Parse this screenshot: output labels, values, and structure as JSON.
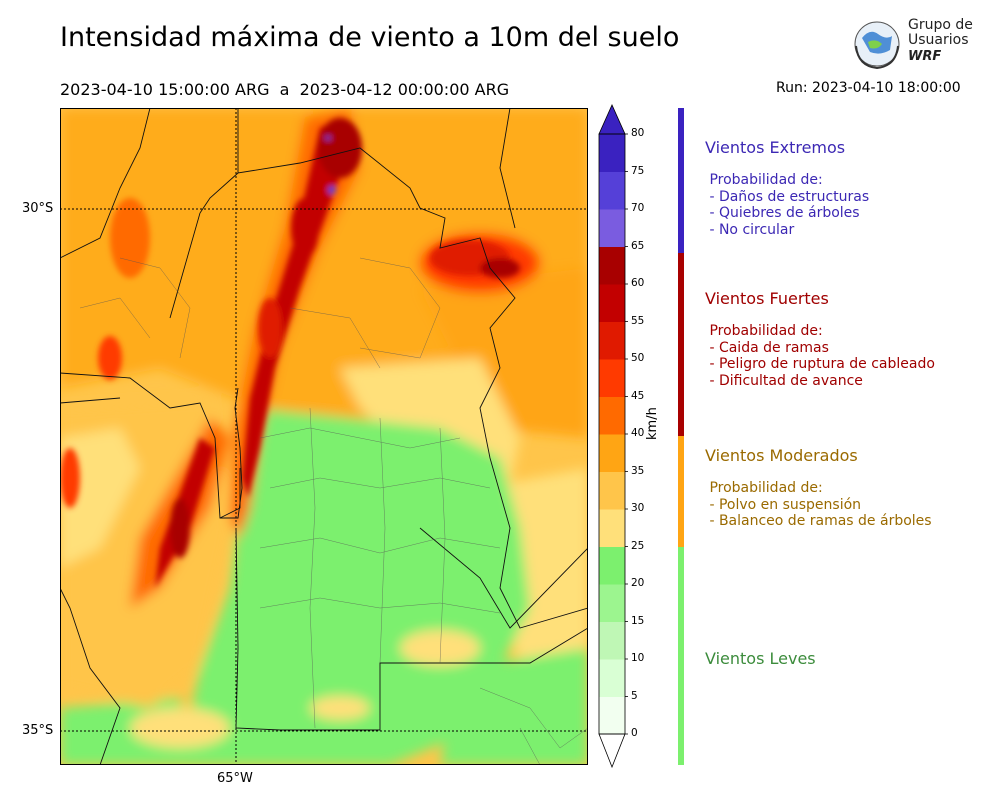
{
  "header": {
    "title": "Intensidad máxima de viento a 10m del suelo",
    "period": "2023-04-10 15:00:00 ARG  a  2023-04-12 00:00:00 ARG",
    "run": "Run: 2023-04-10 18:00:00"
  },
  "logo": {
    "line1": "Grupo de",
    "line2": "Usuarios",
    "line3": "WRF"
  },
  "map": {
    "lat_labels": [
      "30°S",
      "35°S"
    ],
    "lon_labels": [
      "65°W"
    ]
  },
  "colorbar": {
    "units": "km/h",
    "ticks": [
      "0",
      "5",
      "10",
      "15",
      "20",
      "25",
      "30",
      "35",
      "40",
      "45",
      "50",
      "55",
      "60",
      "65",
      "70",
      "75",
      "80"
    ],
    "colors": [
      "#f2fff0",
      "#d9ffd4",
      "#bff7b5",
      "#9cf58f",
      "#7cf06e",
      "#ffe07a",
      "#ffc54a",
      "#ffa514",
      "#ff6a00",
      "#ff3a00",
      "#e01a00",
      "#c20000",
      "#a80000",
      "#7a5ce0",
      "#5540d8",
      "#3a22c0"
    ],
    "extend": "both"
  },
  "legend": {
    "extremos": {
      "title": "Vientos Extremos",
      "text": " Probabilidad de:\n - Daños de estructuras\n - Quiebres de árboles\n - No circular",
      "color": "#3c28b4"
    },
    "fuertes": {
      "title": "Vientos Fuertes",
      "text": " Probabilidad de:\n - Caida de ramas\n - Peligro de ruptura de cableado\n - Dificultad de avance",
      "color": "#a00000"
    },
    "moderados": {
      "title": "Vientos Moderados",
      "text": " Probabilidad de:\n - Polvo en suspensión\n - Balanceo de ramas de árboles",
      "color": "#9a6a00"
    },
    "leves": {
      "title": "Vientos Leves",
      "color": "#3c8c3c"
    }
  }
}
